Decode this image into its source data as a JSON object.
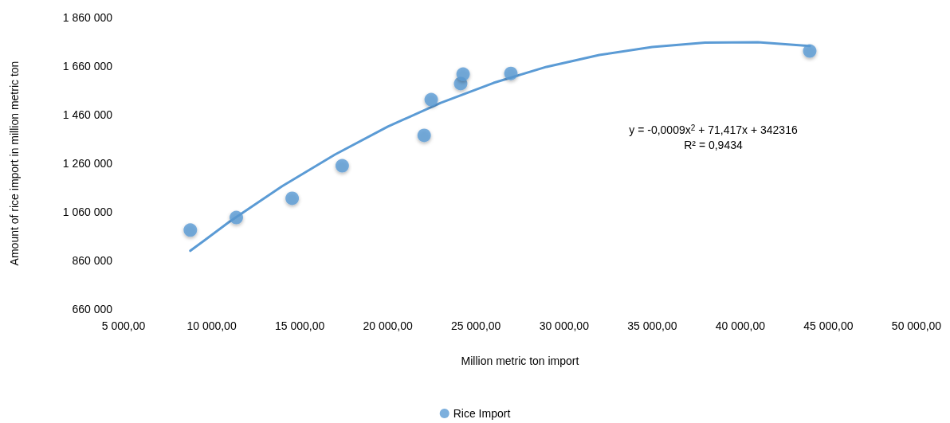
{
  "chart_data": {
    "type": "scatter",
    "xlabel": "Million metric ton import",
    "ylabel": "Amount of rice import in million metric ton",
    "series": [
      {
        "name": "Rice Import",
        "color": "#5b9bd5",
        "x": [
          8790,
          11400,
          14570,
          17410,
          22060,
          22460,
          24130,
          24270,
          26980,
          43940
        ],
        "values": [
          985000,
          1037000,
          1116000,
          1250000,
          1375000,
          1522000,
          1588000,
          1627000,
          1630000,
          1722000
        ]
      },
      {
        "type": "line",
        "color": "#5b9bd5",
        "marker": "none",
        "line_style": "solid",
        "x": [
          8790,
          11000,
          14000,
          17000,
          20000,
          23000,
          26000,
          29000,
          32000,
          35000,
          38000,
          41000,
          43944
        ],
        "values": [
          900000,
          1019000,
          1166000,
          1296000,
          1411000,
          1509000,
          1591000,
          1657000,
          1706000,
          1739000,
          1757000,
          1758000,
          1743000
        ]
      }
    ],
    "xlim": [
      5000,
      50000
    ],
    "xticks": [
      {
        "value": 5000,
        "label": "5 000,00"
      },
      {
        "value": 10000,
        "label": "10 000,00"
      },
      {
        "value": 15000,
        "label": "15 000,00"
      },
      {
        "value": 20000,
        "label": "20 000,00"
      },
      {
        "value": 25000,
        "label": "25 000,00"
      },
      {
        "value": 30000,
        "label": "30 000,00"
      },
      {
        "value": 35000,
        "label": "35 000,00"
      },
      {
        "value": 40000,
        "label": "40 000,00"
      },
      {
        "value": 45000,
        "label": "45 000,00"
      },
      {
        "value": 50000,
        "label": "50 000,00"
      }
    ],
    "ylim": [
      660000,
      1860000
    ],
    "yticks": [
      {
        "value": 660000,
        "label": "660 000"
      },
      {
        "value": 860000,
        "label": "860 000"
      },
      {
        "value": 1060000,
        "label": "1 060 000"
      },
      {
        "value": 1260000,
        "label": "1 260 000"
      },
      {
        "value": 1460000,
        "label": "1 460 000"
      },
      {
        "value": 1660000,
        "label": "1 660 000"
      },
      {
        "value": 1860000,
        "label": "1 860 000"
      }
    ],
    "annotations": [
      "y = -0,0009x$^{2}$ + 71,417x + 342316",
      "R² = 0,9434"
    ],
    "marker": "circle",
    "grid": false,
    "legend": "bottom"
  }
}
